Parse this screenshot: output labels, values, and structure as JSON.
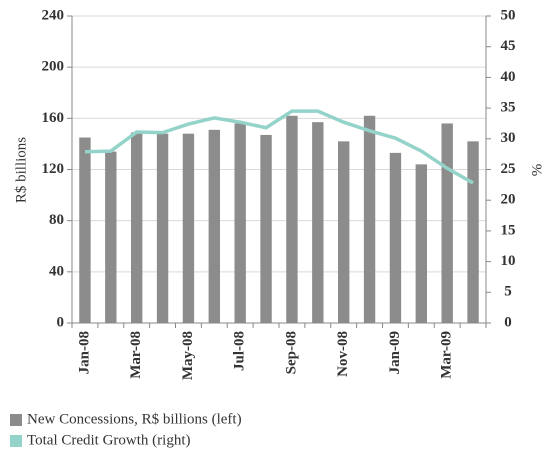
{
  "chart_data": {
    "type": "bar-line",
    "categories": [
      "Jan-08",
      null,
      "Mar-08",
      null,
      "May-08",
      null,
      "Jul-08",
      null,
      "Sep-08",
      null,
      "Nov-08",
      null,
      "Jan-09",
      null,
      "Mar-09",
      null
    ],
    "ylabel": "R$ billions",
    "y2label": "%",
    "ylim": [
      0,
      240
    ],
    "yticks": [
      0,
      40,
      80,
      120,
      160,
      200,
      240
    ],
    "y2lim": [
      0,
      50
    ],
    "y2ticks": [
      0,
      5,
      10,
      15,
      20,
      25,
      30,
      35,
      40,
      45,
      50
    ],
    "grid": true,
    "series": [
      {
        "name": "New Concessions, R$ billions (left)",
        "type": "bar",
        "color": "#8c8c8c",
        "values": [
          145,
          134,
          149,
          148,
          148,
          151,
          156,
          147,
          162,
          157,
          142,
          162,
          133,
          124,
          156,
          142
        ]
      },
      {
        "name": "Total Credit Growth (right)",
        "type": "line",
        "axis": "y2",
        "color": "#94d3c9",
        "values": [
          27.9,
          28,
          31.1,
          31,
          32.4,
          33.4,
          32.7,
          31.8,
          34.5,
          34.5,
          32.7,
          31.3,
          30.1,
          28,
          25.2,
          22.8
        ]
      }
    ]
  }
}
